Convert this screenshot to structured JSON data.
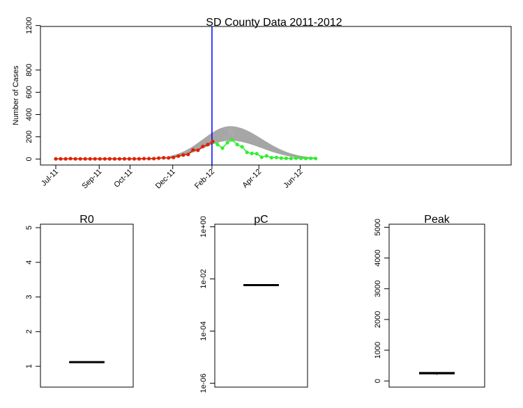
{
  "chart_data": [
    {
      "type": "line",
      "title": "SD County Data 2011-2012",
      "xlabel": "",
      "ylabel": "Number of Cases",
      "x_axis": "weekly dates",
      "x_start": "2011-07-03",
      "x_tick_labels": [
        "Jul-11",
        "Sep-11",
        "Oct-11",
        "Dec-11",
        "Feb-12",
        "Apr-12",
        "Jun-12"
      ],
      "x_tick_dates": [
        "2011-07-03",
        "2011-09-03",
        "2011-10-17",
        "2011-12-17",
        "2012-02-11",
        "2012-04-18",
        "2012-06-16"
      ],
      "y_tick_labels": [
        "0",
        "200",
        "400",
        "600",
        "800",
        "1200"
      ],
      "y_tick_values": [
        0,
        200,
        400,
        600,
        800,
        1200
      ],
      "ylim": [
        -60,
        1250
      ],
      "forecast_date": "2012-02-11",
      "forecast_line_color": "#0000ff",
      "series": [
        {
          "role": "observed-before-forecast",
          "color": "#dd2200",
          "values": [
            1,
            1,
            1,
            4,
            1,
            1,
            1,
            1,
            1,
            1,
            1,
            2,
            1,
            1,
            2,
            2,
            2,
            2,
            4,
            4,
            4,
            8,
            11,
            10,
            14,
            26,
            36,
            41,
            82,
            79,
            113,
            130,
            158
          ]
        },
        {
          "role": "observed-after-forecast",
          "color": "#33ee33",
          "values": [
            158,
            130,
            98,
            147,
            172,
            130,
            110,
            60,
            50,
            48,
            16,
            28,
            12,
            14,
            8,
            6,
            5,
            8,
            6,
            5,
            6,
            5
          ]
        },
        {
          "role": "simulated-trajectories",
          "color": "#a6a6a6",
          "fit_peak_range": [
            170,
            290
          ],
          "fit_peak_date": "2012-03-08",
          "end_value_range": [
            20,
            10
          ]
        }
      ]
    },
    {
      "type": "box",
      "title": "R0",
      "ylabel": "",
      "y_tick_labels": [
        "1",
        "2",
        "3",
        "4",
        "5"
      ],
      "y_tick_values": [
        1,
        2,
        3,
        4,
        5
      ],
      "ylim": [
        0.4,
        5.1
      ],
      "scale": "linear",
      "median": 1.12,
      "box": [
        1.11,
        1.13
      ]
    },
    {
      "type": "box",
      "title": "pC",
      "ylabel": "",
      "y_tick_labels": [
        "1e-06",
        "1e-04",
        "1e-02",
        "1e+00"
      ],
      "y_tick_values": [
        1e-06,
        0.0001,
        0.01,
        1
      ],
      "ylim_log10": [
        -6.15,
        0.1
      ],
      "scale": "log",
      "median": 0.0058,
      "box": [
        0.0055,
        0.0061
      ]
    },
    {
      "type": "box",
      "title": "Peak",
      "ylabel": "",
      "y_tick_labels": [
        "0",
        "1000",
        "2000",
        "3000",
        "4000",
        "5000"
      ],
      "y_tick_values": [
        0,
        1000,
        2000,
        3000,
        4000,
        5000
      ],
      "ylim": [
        -200,
        5100
      ],
      "scale": "linear",
      "median": 250,
      "box": [
        230,
        280
      ],
      "whiskers": [
        200,
        300
      ]
    }
  ]
}
